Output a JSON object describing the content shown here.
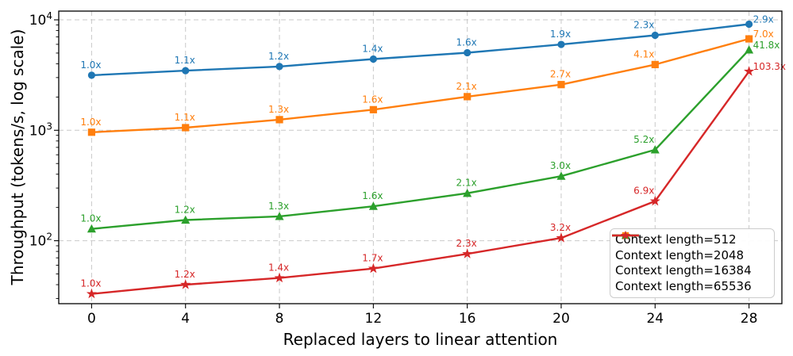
{
  "chart_data": {
    "type": "line",
    "x_label": "Replaced layers to linear attention",
    "y_label": "Throughput (tokens/s, log scale)",
    "x": [
      0,
      4,
      8,
      12,
      16,
      20,
      24,
      28
    ],
    "y_scale": "log",
    "y_ticks_exponents": [
      2,
      3,
      4
    ],
    "ylim_approx": [
      27,
      12000
    ],
    "xlim": [
      -1.4,
      29.4
    ],
    "grid": true,
    "grid_style": "dashed",
    "legend_position": "lower right",
    "series": [
      {
        "name": "Context length=512",
        "color": "#1f77b4",
        "marker": "circle",
        "values": [
          3150,
          3465,
          3780,
          4410,
          5040,
          5985,
          7245,
          9135
        ],
        "point_labels": [
          "1.0x",
          "1.1x",
          "1.2x",
          "1.4x",
          "1.6x",
          "1.9x",
          "2.3x",
          "2.9x"
        ]
      },
      {
        "name": "Context length=2048",
        "color": "#ff7f0e",
        "marker": "square",
        "values": [
          960,
          1056,
          1248,
          1536,
          2016,
          2592,
          3936,
          6720
        ],
        "point_labels": [
          "1.0x",
          "1.1x",
          "1.3x",
          "1.6x",
          "2.1x",
          "2.7x",
          "4.1x",
          "7.0x"
        ]
      },
      {
        "name": "Context length=16384",
        "color": "#2ca02c",
        "marker": "triangle",
        "values": [
          128,
          154,
          166,
          205,
          269,
          384,
          666,
          5350
        ],
        "point_labels": [
          "1.0x",
          "1.2x",
          "1.3x",
          "1.6x",
          "2.1x",
          "3.0x",
          "5.2x",
          "41.8x"
        ]
      },
      {
        "name": "Context length=65536",
        "color": "#d62728",
        "marker": "star",
        "values": [
          33,
          40,
          46,
          56,
          76,
          106,
          228,
          3410
        ],
        "point_labels": [
          "1.0x",
          "1.2x",
          "1.4x",
          "1.7x",
          "2.3x",
          "3.2x",
          "6.9x",
          "103.3x"
        ]
      }
    ]
  }
}
